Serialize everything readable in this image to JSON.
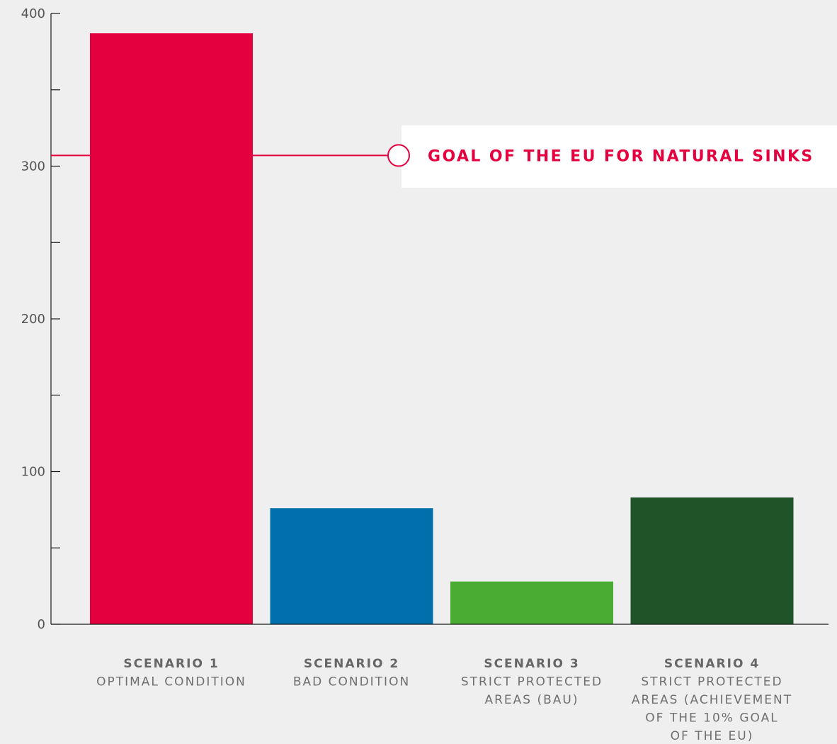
{
  "chart_data": {
    "type": "bar",
    "title": "",
    "xlabel": "",
    "ylabel": "",
    "ylim": [
      0,
      400
    ],
    "yticks": [
      0,
      100,
      200,
      300,
      400
    ],
    "yminor": [
      50,
      150,
      250,
      350
    ],
    "categories": [
      {
        "title": "SCENARIO 1",
        "subtitle": [
          "OPTIMAL CONDITION"
        ]
      },
      {
        "title": "SCENARIO 2",
        "subtitle": [
          "BAD CONDITION"
        ]
      },
      {
        "title": "SCENARIO 3",
        "subtitle": [
          "STRICT PROTECTED",
          "AREAS (BAU)"
        ]
      },
      {
        "title": "SCENARIO 4",
        "subtitle": [
          "STRICT PROTECTED",
          "AREAS (ACHIEVEMENT",
          "OF THE 10% GOAL",
          "OF THE EU)"
        ]
      }
    ],
    "values": [
      387,
      76,
      28,
      83
    ],
    "colors": [
      "#e4003f",
      "#006fab",
      "#4aac33",
      "#1f5429"
    ],
    "reference_line": {
      "value": 307,
      "label": "GOAL OF THE EU FOR NATURAL SINKS",
      "color": "#e4003f"
    },
    "grid": false,
    "legend": "none"
  }
}
